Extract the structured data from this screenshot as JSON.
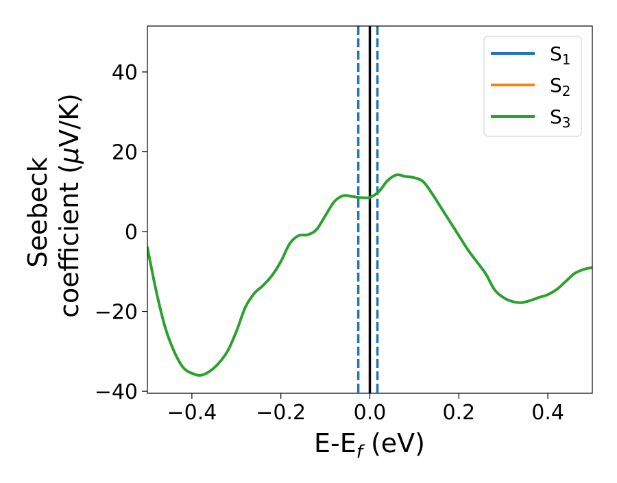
{
  "chart_data": {
    "type": "line",
    "xlabel_main": "E-E",
    "xlabel_sub": "f",
    "xlabel_unit": " (eV)",
    "ylabel_line1": "Seebeck",
    "ylabel_line2_prefix": "coefficient  (",
    "ylabel_mu": "μ",
    "ylabel_line2_suffix": "V/K)",
    "xlim": [
      -0.5,
      0.5
    ],
    "ylim": [
      -40.5,
      51.5
    ],
    "xticks": [
      {
        "value": -0.4,
        "label": "−0.4"
      },
      {
        "value": -0.2,
        "label": "−0.2"
      },
      {
        "value": 0.0,
        "label": "0.0"
      },
      {
        "value": 0.2,
        "label": "0.2"
      },
      {
        "value": 0.4,
        "label": "0.4"
      }
    ],
    "yticks": [
      {
        "value": -40,
        "label": "−40"
      },
      {
        "value": -20,
        "label": "−20"
      },
      {
        "value": 0,
        "label": "0"
      },
      {
        "value": 20,
        "label": "20"
      },
      {
        "value": 40,
        "label": "40"
      }
    ],
    "grid": false,
    "legend_position": "top-right",
    "legend": [
      {
        "name": "S",
        "sub": "1",
        "color": "#1f77b4"
      },
      {
        "name": "S",
        "sub": "2",
        "color": "#ff7f0e"
      },
      {
        "name": "S",
        "sub": "3",
        "color": "#2ca02c"
      }
    ],
    "series": [
      {
        "color": "#2ca02c",
        "x": [
          -0.5,
          -0.48,
          -0.46,
          -0.44,
          -0.42,
          -0.4,
          -0.38,
          -0.36,
          -0.34,
          -0.32,
          -0.3,
          -0.28,
          -0.26,
          -0.24,
          -0.22,
          -0.2,
          -0.18,
          -0.16,
          -0.14,
          -0.12,
          -0.1,
          -0.08,
          -0.06,
          -0.04,
          -0.02,
          0.0,
          0.02,
          0.04,
          0.06,
          0.08,
          0.1,
          0.12,
          0.14,
          0.16,
          0.18,
          0.2,
          0.22,
          0.24,
          0.26,
          0.28,
          0.3,
          0.32,
          0.34,
          0.36,
          0.38,
          0.4,
          0.42,
          0.44,
          0.46,
          0.48,
          0.5
        ],
        "y": [
          -4,
          -15,
          -24,
          -30,
          -34,
          -35.5,
          -36,
          -35,
          -33,
          -30,
          -25,
          -19,
          -15.5,
          -13.5,
          -11,
          -7.5,
          -3,
          -1,
          -0.8,
          0.5,
          4,
          7.5,
          9,
          8.8,
          8.5,
          8.6,
          10,
          12.8,
          14.2,
          13.8,
          13.5,
          12.5,
          9.5,
          6,
          2.5,
          -1,
          -4.5,
          -7.5,
          -10.5,
          -14.5,
          -16.5,
          -17.5,
          -17.8,
          -17.3,
          -16.5,
          -15.8,
          -14.5,
          -12.5,
          -10.5,
          -9.5,
          -9
        ]
      }
    ],
    "reference_lines": [
      {
        "x": -0.026,
        "color": "#1f77b4",
        "style": "dashed"
      },
      {
        "x": 0.0,
        "color": "#000000",
        "style": "solid"
      },
      {
        "x": 0.017,
        "color": "#1f77b4",
        "style": "dashed"
      }
    ]
  }
}
